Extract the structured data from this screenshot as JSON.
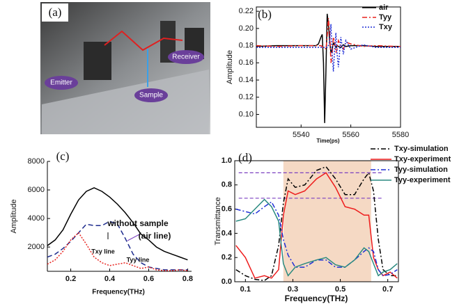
{
  "photo": {
    "label": "(a)",
    "callouts": [
      "Emitter",
      "Sample",
      "Receiver"
    ]
  },
  "chart_data": [
    {
      "type": "line",
      "label": "(b)",
      "xlabel": "Time(ps)",
      "ylabel": "Amplitude",
      "x": [
        5522,
        5530,
        5540,
        5546,
        5547,
        5548,
        5548.5,
        5549,
        5549.5,
        5550,
        5550.5,
        5551,
        5551.5,
        5552,
        5552.5,
        5553,
        5553.5,
        5554,
        5554.5,
        5555,
        5556,
        5557,
        5558,
        5560,
        5565,
        5570,
        5580
      ],
      "series": [
        {
          "name": "air",
          "color": "#000000",
          "style": "solid",
          "values": [
            0.179,
            0.18,
            0.18,
            0.18,
            0.182,
            0.19,
            0.193,
            0.16,
            0.09,
            0.15,
            0.217,
            0.205,
            0.185,
            0.172,
            0.176,
            0.183,
            0.181,
            0.178,
            0.18,
            0.179,
            0.178,
            0.181,
            0.179,
            0.18,
            0.18,
            0.179,
            0.179
          ]
        },
        {
          "name": "Tyy",
          "color": "#e8211c",
          "style": "dash-dot",
          "values": [
            0.18,
            0.179,
            0.18,
            0.18,
            0.18,
            0.18,
            0.179,
            0.178,
            0.178,
            0.176,
            0.19,
            0.212,
            0.195,
            0.16,
            0.17,
            0.19,
            0.185,
            0.172,
            0.176,
            0.186,
            0.18,
            0.176,
            0.184,
            0.182,
            0.179,
            0.18,
            0.179
          ]
        },
        {
          "name": "Txy",
          "color": "#1f2fd6",
          "style": "dotted",
          "values": [
            0.178,
            0.178,
            0.178,
            0.178,
            0.178,
            0.178,
            0.178,
            0.178,
            0.178,
            0.178,
            0.178,
            0.18,
            0.185,
            0.205,
            0.17,
            0.15,
            0.175,
            0.195,
            0.17,
            0.155,
            0.19,
            0.17,
            0.186,
            0.176,
            0.181,
            0.178,
            0.178
          ]
        }
      ],
      "xlim": [
        5522,
        5580
      ],
      "xticks": [
        5540,
        5560,
        5580
      ],
      "ylim": [
        0.085,
        0.225
      ],
      "yticks": [
        {
          "value": 0.1,
          "label": "0.10"
        },
        0.12,
        0.14,
        0.16,
        0.18,
        {
          "value": 0.2,
          "label": "0.20"
        },
        0.22
      ],
      "box": true
    },
    {
      "type": "line",
      "label": "(c)",
      "xlabel": "Frequency(THz)",
      "ylabel": "Amplitude",
      "annotations": [
        "without sample",
        "(air line)",
        "Txy line",
        "Tyy line"
      ],
      "x": [
        0.08,
        0.12,
        0.16,
        0.2,
        0.24,
        0.28,
        0.32,
        0.36,
        0.4,
        0.44,
        0.48,
        0.52,
        0.56,
        0.6,
        0.64,
        0.68,
        0.72,
        0.76,
        0.8
      ],
      "series": [
        {
          "color": "#000000",
          "style": "solid",
          "values": [
            2100,
            2500,
            3200,
            4300,
            5300,
            5900,
            6150,
            5900,
            5500,
            5000,
            4400,
            3700,
            2900,
            2500,
            2000,
            1700,
            1500,
            1300,
            1100
          ]
        },
        {
          "color": "#1c2a8c",
          "style": "dashed",
          "values": [
            1300,
            1500,
            1900,
            2400,
            3000,
            3600,
            3500,
            3500,
            3800,
            3600,
            2600,
            1500,
            900,
            600,
            500,
            400,
            400,
            400,
            400
          ]
        },
        {
          "color": "#e8211c",
          "style": "dotted",
          "values": [
            800,
            1100,
            1700,
            2500,
            3000,
            2200,
            1300,
            900,
            700,
            800,
            900,
            700,
            500,
            600,
            400,
            350,
            350,
            400,
            350
          ]
        }
      ],
      "xlim": [
        0.08,
        0.82
      ],
      "xticks": [
        0.2,
        0.4,
        0.6,
        0.8
      ],
      "ylim": [
        300,
        8000
      ],
      "yticks": [
        2000,
        4000,
        6000,
        8000
      ],
      "box": false
    },
    {
      "type": "line",
      "label": "(d)",
      "xlabel": "Frequency(THz)",
      "ylabel": "Transmittance",
      "band": [
        0.26,
        0.63
      ],
      "band_color": "#f5d9c4",
      "hlines": [
        0.9,
        0.69
      ],
      "hline_color": "#7a3fc0",
      "x": [
        0.06,
        0.1,
        0.14,
        0.18,
        0.21,
        0.24,
        0.26,
        0.28,
        0.31,
        0.35,
        0.4,
        0.44,
        0.48,
        0.52,
        0.56,
        0.6,
        0.62,
        0.64,
        0.66,
        0.68,
        0.71,
        0.74
      ],
      "series": [
        {
          "name": "Txy-simulation",
          "color": "#000000",
          "style": "dash-dot",
          "values": [
            0.1,
            0.05,
            0.02,
            0.01,
            0.05,
            0.3,
            0.65,
            0.85,
            0.78,
            0.8,
            0.92,
            0.95,
            0.85,
            0.72,
            0.72,
            0.85,
            0.9,
            0.75,
            0.35,
            0.1,
            0.05,
            0.05
          ]
        },
        {
          "name": "Txy-experiment",
          "color": "#ee1c1c",
          "style": "solid",
          "values": [
            0.3,
            0.2,
            0.03,
            0.05,
            0.03,
            0.1,
            0.55,
            0.75,
            0.72,
            0.75,
            0.85,
            0.9,
            0.78,
            0.62,
            0.6,
            0.55,
            0.55,
            0.2,
            0.1,
            0.05,
            0.08,
            0.03
          ]
        },
        {
          "name": "Tyy-simulation",
          "color": "#1f2fd6",
          "style": "dash-dot",
          "values": [
            0.6,
            0.58,
            0.56,
            0.62,
            0.66,
            0.55,
            0.35,
            0.22,
            0.12,
            0.12,
            0.18,
            0.18,
            0.12,
            0.12,
            0.18,
            0.25,
            0.28,
            0.25,
            0.1,
            0.05,
            0.06,
            0.1
          ]
        },
        {
          "name": "Tyy-experiment",
          "color": "#2a8a80",
          "style": "solid",
          "values": [
            0.5,
            0.52,
            0.6,
            0.68,
            0.62,
            0.5,
            0.15,
            0.05,
            0.12,
            0.15,
            0.18,
            0.2,
            0.14,
            0.12,
            0.18,
            0.28,
            0.25,
            0.15,
            0.05,
            0.08,
            0.1,
            0.15
          ]
        }
      ],
      "xlim": [
        0.055,
        0.745
      ],
      "xticks": [
        0.1,
        0.3,
        0.5,
        0.7
      ],
      "ylim": [
        0,
        1.0
      ],
      "yticks": [
        {
          "value": 0,
          "label": "0.0"
        },
        0.2,
        0.4,
        0.6,
        0.8,
        {
          "value": 1.0,
          "label": "1.0"
        }
      ],
      "box": true
    }
  ]
}
